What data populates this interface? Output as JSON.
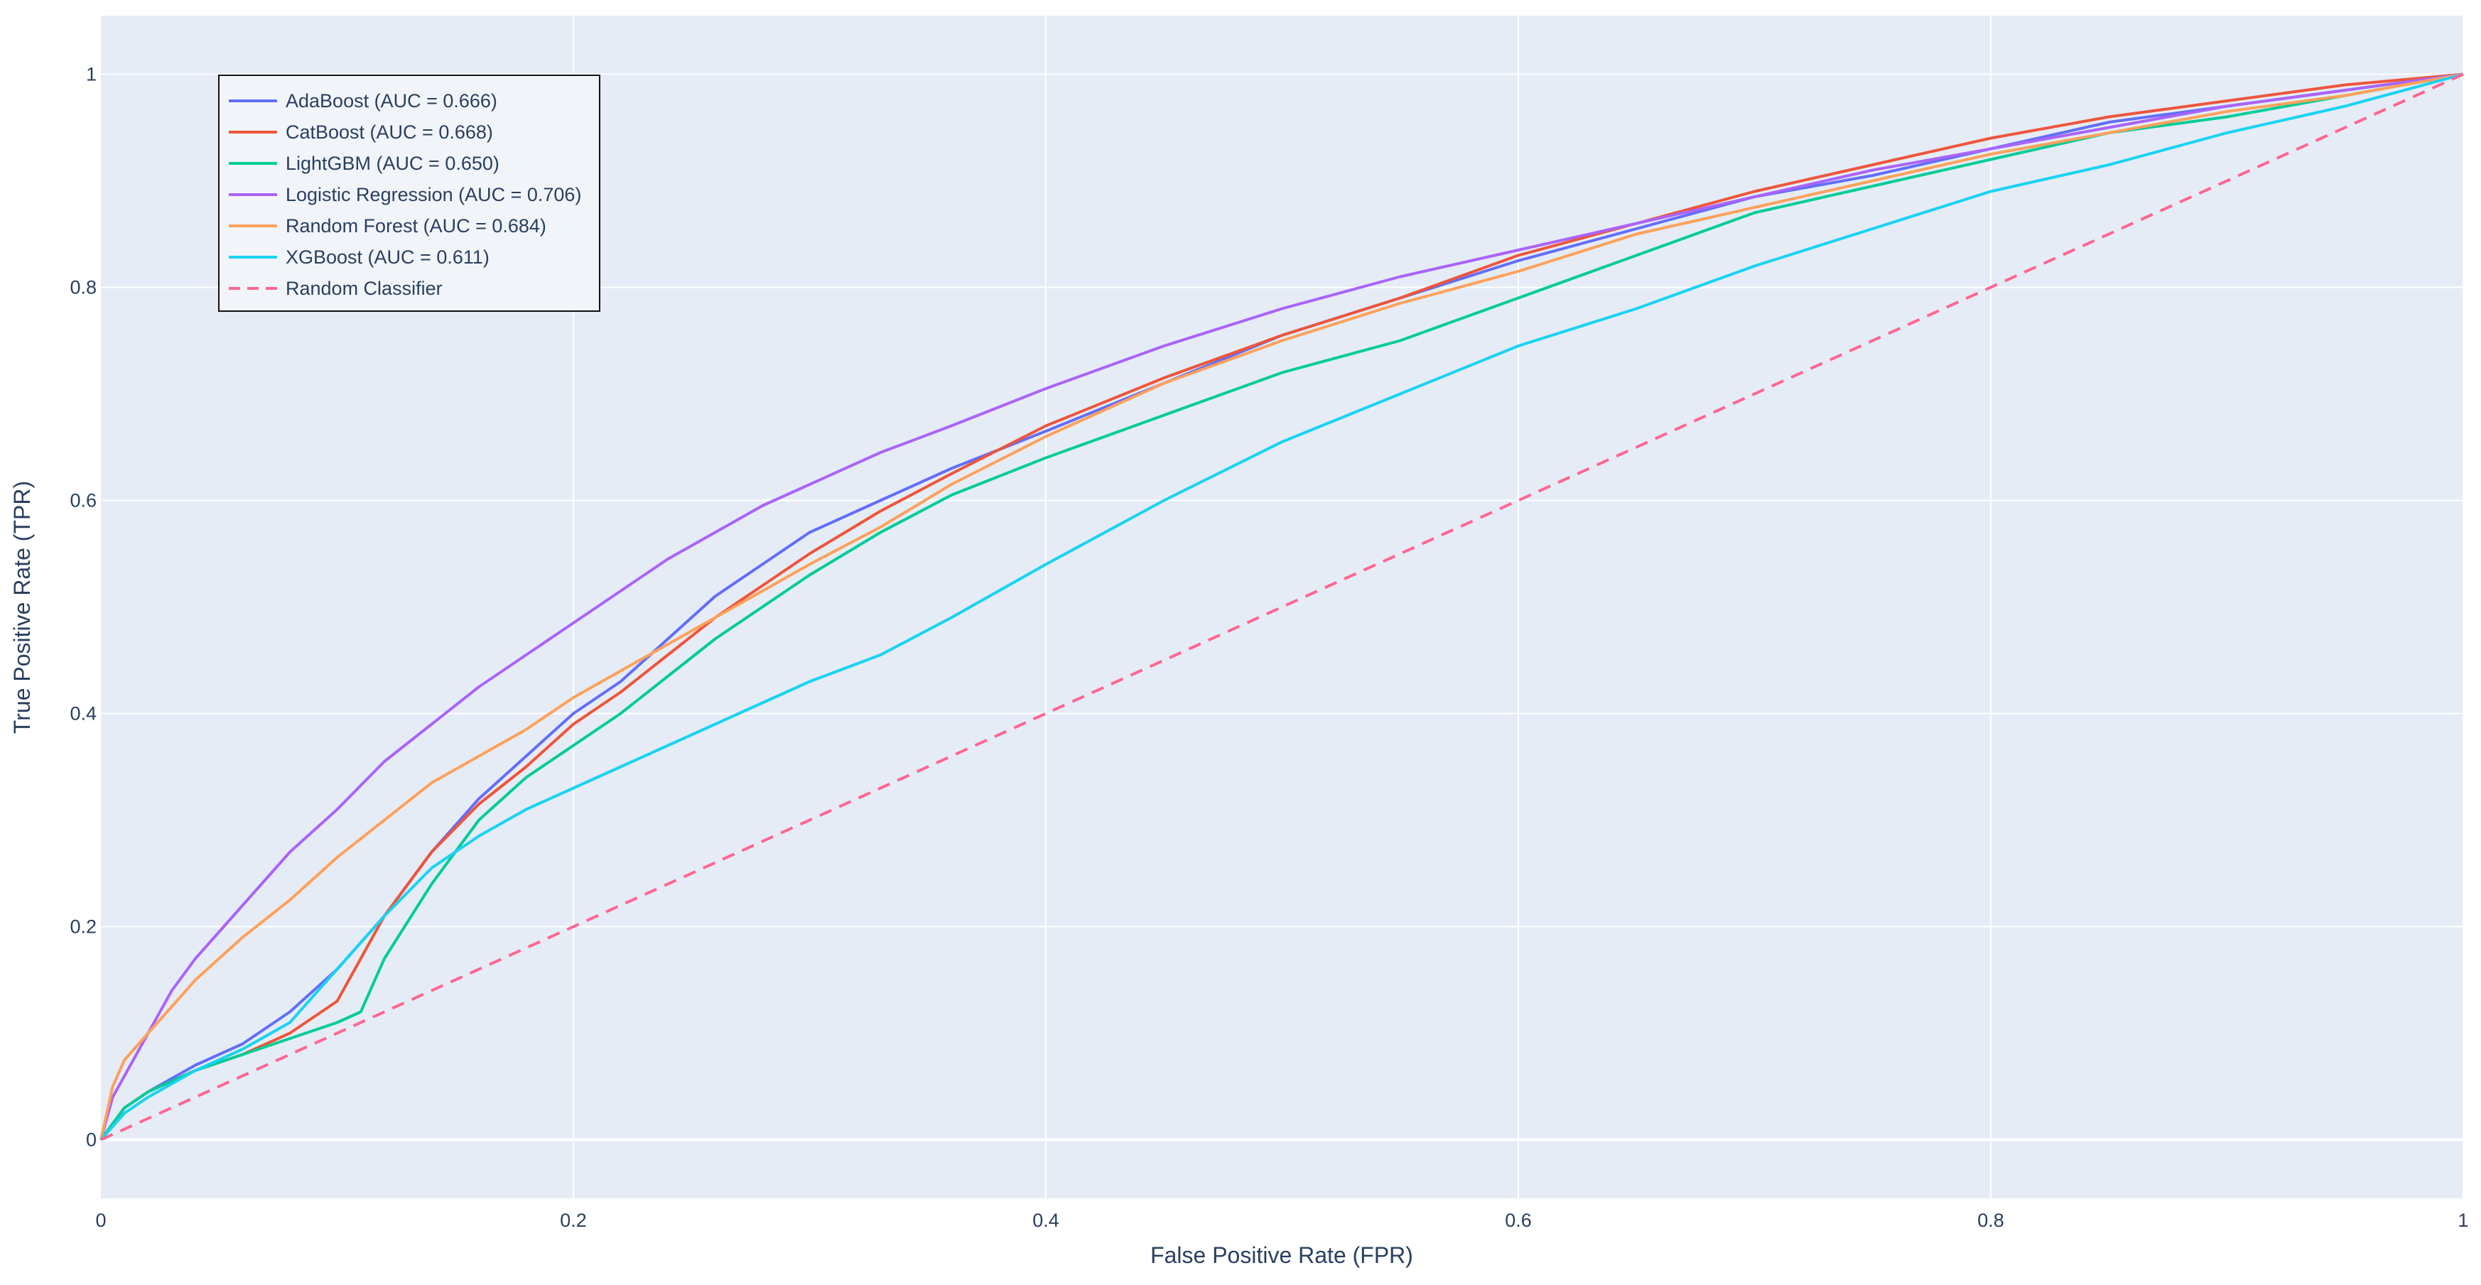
{
  "chart_data": {
    "type": "line",
    "title": "",
    "xlabel": "False Positive Rate (FPR)",
    "ylabel": "True Positive Rate (TPR)",
    "xlim": [
      0,
      1
    ],
    "ylim": [
      -0.055,
      1.055
    ],
    "xticks": [
      0,
      0.2,
      0.4,
      0.6,
      0.8,
      1
    ],
    "xtick_labels": [
      "0",
      "0.2",
      "0.4",
      "0.6",
      "0.8",
      "1"
    ],
    "yticks": [
      0,
      0.2,
      0.4,
      0.6,
      0.8,
      1
    ],
    "ytick_labels": [
      "0",
      "0.2",
      "0.4",
      "0.6",
      "0.8",
      "1"
    ],
    "grid": true,
    "legend_position": "top-left",
    "plot_background": "#e5ecf6",
    "grid_color": "#ffffff",
    "series": [
      {
        "name": "AdaBoost (AUC = 0.666)",
        "color": "#636efa",
        "dash": "solid",
        "x": [
          0,
          0.01,
          0.02,
          0.04,
          0.06,
          0.08,
          0.1,
          0.12,
          0.14,
          0.16,
          0.18,
          0.2,
          0.22,
          0.24,
          0.26,
          0.28,
          0.3,
          0.33,
          0.36,
          0.4,
          0.45,
          0.5,
          0.55,
          0.6,
          0.65,
          0.7,
          0.75,
          0.8,
          0.85,
          0.9,
          0.95,
          1
        ],
        "y": [
          0,
          0.03,
          0.045,
          0.07,
          0.09,
          0.12,
          0.16,
          0.21,
          0.27,
          0.32,
          0.36,
          0.4,
          0.43,
          0.47,
          0.51,
          0.54,
          0.57,
          0.6,
          0.63,
          0.665,
          0.71,
          0.755,
          0.79,
          0.825,
          0.855,
          0.885,
          0.905,
          0.93,
          0.955,
          0.97,
          0.985,
          1
        ]
      },
      {
        "name": "CatBoost (AUC = 0.668)",
        "color": "#ef553b",
        "dash": "solid",
        "x": [
          0,
          0.01,
          0.02,
          0.04,
          0.06,
          0.08,
          0.1,
          0.12,
          0.14,
          0.16,
          0.18,
          0.2,
          0.22,
          0.24,
          0.26,
          0.28,
          0.3,
          0.33,
          0.36,
          0.4,
          0.45,
          0.5,
          0.55,
          0.6,
          0.65,
          0.7,
          0.75,
          0.8,
          0.85,
          0.9,
          0.95,
          1
        ],
        "y": [
          0,
          0.03,
          0.045,
          0.065,
          0.08,
          0.1,
          0.13,
          0.21,
          0.27,
          0.315,
          0.35,
          0.39,
          0.42,
          0.455,
          0.49,
          0.52,
          0.55,
          0.59,
          0.625,
          0.67,
          0.715,
          0.755,
          0.79,
          0.83,
          0.86,
          0.89,
          0.915,
          0.94,
          0.96,
          0.975,
          0.99,
          1
        ]
      },
      {
        "name": "LightGBM (AUC = 0.650)",
        "color": "#00cc96",
        "dash": "solid",
        "x": [
          0,
          0.01,
          0.02,
          0.04,
          0.06,
          0.08,
          0.1,
          0.11,
          0.12,
          0.14,
          0.16,
          0.18,
          0.2,
          0.22,
          0.24,
          0.26,
          0.28,
          0.3,
          0.33,
          0.36,
          0.4,
          0.45,
          0.5,
          0.55,
          0.6,
          0.65,
          0.7,
          0.75,
          0.8,
          0.85,
          0.9,
          0.95,
          1
        ],
        "y": [
          0,
          0.03,
          0.045,
          0.065,
          0.08,
          0.095,
          0.11,
          0.12,
          0.17,
          0.24,
          0.3,
          0.34,
          0.37,
          0.4,
          0.435,
          0.47,
          0.5,
          0.53,
          0.57,
          0.605,
          0.64,
          0.68,
          0.72,
          0.75,
          0.79,
          0.83,
          0.87,
          0.895,
          0.92,
          0.945,
          0.96,
          0.98,
          1
        ]
      },
      {
        "name": "Logistic Regression (AUC = 0.706)",
        "color": "#ab63fa",
        "dash": "solid",
        "x": [
          0,
          0.005,
          0.01,
          0.02,
          0.03,
          0.04,
          0.06,
          0.08,
          0.1,
          0.12,
          0.14,
          0.16,
          0.18,
          0.2,
          0.22,
          0.24,
          0.26,
          0.28,
          0.3,
          0.33,
          0.36,
          0.4,
          0.45,
          0.5,
          0.55,
          0.6,
          0.65,
          0.7,
          0.75,
          0.8,
          0.85,
          0.9,
          0.95,
          1
        ],
        "y": [
          0,
          0.04,
          0.06,
          0.1,
          0.14,
          0.17,
          0.22,
          0.27,
          0.31,
          0.355,
          0.39,
          0.425,
          0.455,
          0.485,
          0.515,
          0.545,
          0.57,
          0.595,
          0.615,
          0.645,
          0.67,
          0.705,
          0.745,
          0.78,
          0.81,
          0.835,
          0.86,
          0.885,
          0.91,
          0.93,
          0.95,
          0.97,
          0.985,
          1
        ]
      },
      {
        "name": "Random Forest (AUC = 0.684)",
        "color": "#ffa15a",
        "dash": "solid",
        "x": [
          0,
          0.005,
          0.01,
          0.02,
          0.03,
          0.04,
          0.06,
          0.08,
          0.1,
          0.12,
          0.14,
          0.16,
          0.18,
          0.2,
          0.22,
          0.24,
          0.26,
          0.28,
          0.3,
          0.33,
          0.36,
          0.4,
          0.45,
          0.5,
          0.55,
          0.6,
          0.65,
          0.7,
          0.75,
          0.8,
          0.85,
          0.9,
          0.95,
          1
        ],
        "y": [
          0,
          0.05,
          0.075,
          0.1,
          0.125,
          0.15,
          0.19,
          0.225,
          0.265,
          0.3,
          0.335,
          0.36,
          0.385,
          0.415,
          0.44,
          0.465,
          0.49,
          0.515,
          0.54,
          0.575,
          0.615,
          0.66,
          0.71,
          0.75,
          0.785,
          0.815,
          0.85,
          0.875,
          0.9,
          0.925,
          0.945,
          0.965,
          0.98,
          1
        ]
      },
      {
        "name": "XGBoost (AUC = 0.611)",
        "color": "#19d3f3",
        "dash": "solid",
        "x": [
          0,
          0.01,
          0.02,
          0.04,
          0.06,
          0.08,
          0.1,
          0.12,
          0.14,
          0.16,
          0.18,
          0.2,
          0.22,
          0.24,
          0.26,
          0.28,
          0.3,
          0.33,
          0.36,
          0.4,
          0.45,
          0.5,
          0.55,
          0.6,
          0.65,
          0.7,
          0.75,
          0.8,
          0.85,
          0.9,
          0.95,
          1
        ],
        "y": [
          0,
          0.025,
          0.04,
          0.065,
          0.085,
          0.11,
          0.16,
          0.21,
          0.255,
          0.285,
          0.31,
          0.33,
          0.35,
          0.37,
          0.39,
          0.41,
          0.43,
          0.455,
          0.49,
          0.54,
          0.6,
          0.655,
          0.7,
          0.745,
          0.78,
          0.82,
          0.855,
          0.89,
          0.915,
          0.945,
          0.97,
          1
        ]
      },
      {
        "name": "Random Classifier",
        "color": "#ff6692",
        "dash": "dash",
        "x": [
          0,
          1
        ],
        "y": [
          0,
          1
        ]
      }
    ]
  }
}
